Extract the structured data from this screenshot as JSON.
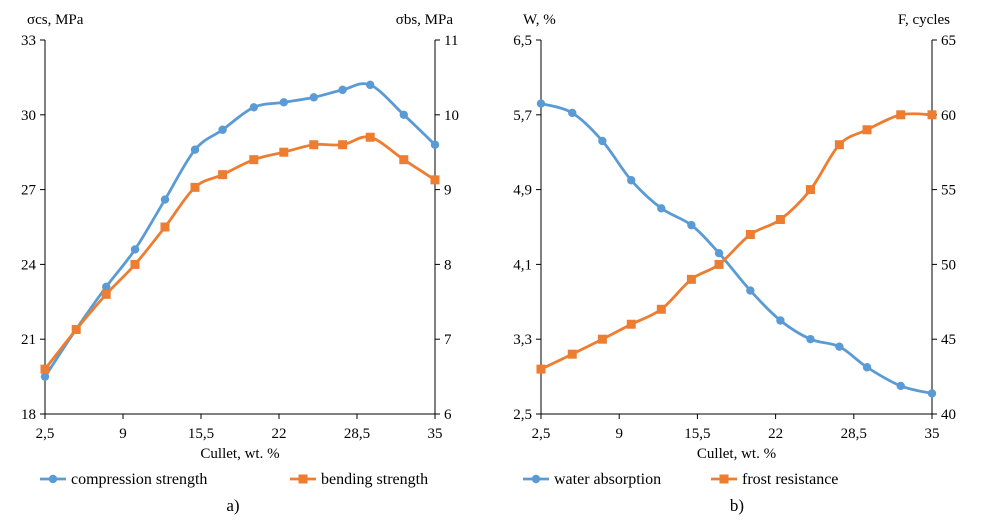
{
  "chart_data": [
    {
      "type": "line",
      "caption": "a)",
      "xlabel": "Cullet, wt. %",
      "ylabel_left": "σcs, MPa",
      "ylabel_right": "σbs, MPa",
      "x_ticks": [
        "2,5",
        "9",
        "15,5",
        "22",
        "28,5",
        "35"
      ],
      "x_tick_values": [
        2.5,
        9,
        15.5,
        22,
        28.5,
        35
      ],
      "xlim": [
        2.5,
        35
      ],
      "ylim_left": [
        18,
        33
      ],
      "ylim_right": [
        6,
        11
      ],
      "y_left_ticks": [
        "18",
        "21",
        "24",
        "27",
        "30",
        "33"
      ],
      "y_left_tick_values": [
        18,
        21,
        24,
        27,
        30,
        33
      ],
      "y_right_ticks": [
        "6",
        "7",
        "8",
        "9",
        "10",
        "11"
      ],
      "y_right_tick_values": [
        6,
        7,
        8,
        9,
        10,
        11
      ],
      "grid": false,
      "legend_position": "bottom",
      "series": [
        {
          "name": "compression strength",
          "axis": "left",
          "color": "#5b9bd5",
          "marker": "circle",
          "x": [
            2.5,
            5.1,
            7.6,
            10,
            12.5,
            15,
            17.3,
            19.9,
            22.4,
            24.9,
            27.3,
            29.6,
            32.4,
            35
          ],
          "y": [
            19.5,
            21.4,
            23.1,
            24.6,
            26.6,
            28.6,
            29.4,
            30.3,
            30.5,
            30.7,
            31.0,
            31.2,
            30.0,
            28.8
          ]
        },
        {
          "name": "bending strength",
          "axis": "right",
          "color": "#ed7d31",
          "marker": "square",
          "x": [
            2.5,
            5.1,
            7.6,
            10,
            12.5,
            15,
            17.3,
            19.9,
            22.4,
            24.9,
            27.3,
            29.6,
            32.4,
            35
          ],
          "y": [
            6.6,
            7.13,
            7.6,
            8.0,
            8.5,
            9.03,
            9.2,
            9.4,
            9.5,
            9.6,
            9.6,
            9.7,
            9.4,
            9.13
          ]
        }
      ]
    },
    {
      "type": "line",
      "caption": "b)",
      "xlabel": "Cullet, wt. %",
      "ylabel_left": "W, %",
      "ylabel_right": "F, cycles",
      "x_ticks": [
        "2,5",
        "9",
        "15,5",
        "22",
        "28,5",
        "35"
      ],
      "x_tick_values": [
        2.5,
        9,
        15.5,
        22,
        28.5,
        35
      ],
      "xlim": [
        2.5,
        35
      ],
      "ylim_left": [
        2.5,
        6.5
      ],
      "ylim_right": [
        40,
        65
      ],
      "y_left_ticks": [
        "2,5",
        "3,3",
        "4,1",
        "4,9",
        "5,7",
        "6,5"
      ],
      "y_left_tick_values": [
        2.5,
        3.3,
        4.1,
        4.9,
        5.7,
        6.5
      ],
      "y_right_ticks": [
        "40",
        "45",
        "50",
        "55",
        "60",
        "65"
      ],
      "y_right_tick_values": [
        40,
        45,
        50,
        55,
        60,
        65
      ],
      "grid": false,
      "legend_position": "bottom",
      "series": [
        {
          "name": "water absorption",
          "axis": "left",
          "color": "#5b9bd5",
          "marker": "circle",
          "x": [
            2.5,
            5.1,
            7.6,
            10,
            12.5,
            15,
            17.3,
            19.9,
            22.4,
            24.9,
            27.3,
            29.6,
            32.4,
            35
          ],
          "y": [
            5.82,
            5.72,
            5.42,
            5.0,
            4.7,
            4.52,
            4.22,
            3.82,
            3.5,
            3.3,
            3.22,
            3.0,
            2.8,
            2.72
          ]
        },
        {
          "name": "frost resistance",
          "axis": "right",
          "color": "#ed7d31",
          "marker": "square",
          "x": [
            2.5,
            5.1,
            7.6,
            10,
            12.5,
            15,
            17.3,
            19.9,
            22.4,
            24.9,
            27.3,
            29.6,
            32.4,
            35
          ],
          "y": [
            43,
            44,
            45,
            46,
            47,
            49,
            50,
            52,
            53,
            55,
            58,
            59,
            60,
            60
          ]
        }
      ]
    }
  ]
}
